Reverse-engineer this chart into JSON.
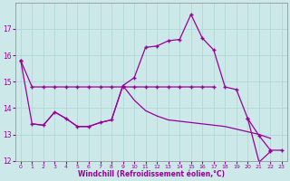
{
  "xlabel": "Windchill (Refroidissement éolien,°C)",
  "bg_color": "#cce8e8",
  "line_color": "#990099",
  "x": [
    0,
    1,
    2,
    3,
    4,
    5,
    6,
    7,
    8,
    9,
    10,
    11,
    12,
    13,
    14,
    15,
    16,
    17,
    18,
    19,
    20,
    21,
    22,
    23
  ],
  "line1_x": [
    0,
    1,
    2,
    3,
    4,
    5,
    6,
    7,
    8,
    9,
    10,
    11,
    12,
    13,
    14,
    15,
    16,
    17
  ],
  "line1_y": [
    15.8,
    14.8,
    14.8,
    14.8,
    14.8,
    14.8,
    14.8,
    14.8,
    14.8,
    14.8,
    14.8,
    14.8,
    14.8,
    14.8,
    14.8,
    14.8,
    14.8,
    14.8
  ],
  "line2_x": [
    0,
    1,
    2,
    3,
    4,
    5,
    6,
    7,
    8,
    9,
    10,
    11,
    12,
    13,
    14,
    15,
    16,
    17,
    18,
    19,
    20,
    21,
    22,
    23
  ],
  "line2_y": [
    15.8,
    13.4,
    13.35,
    13.85,
    13.6,
    13.3,
    13.3,
    13.45,
    13.55,
    14.85,
    15.15,
    16.3,
    16.35,
    16.55,
    16.6,
    17.55,
    16.65,
    16.2,
    14.8,
    14.7,
    13.6,
    12.95,
    12.4,
    12.4
  ],
  "line3_x": [
    1,
    2,
    3,
    4,
    5,
    6,
    7,
    8,
    9,
    10,
    11,
    12,
    13,
    14,
    15,
    16,
    17,
    18,
    19,
    20,
    21,
    22
  ],
  "line3_y": [
    13.4,
    13.35,
    13.85,
    13.6,
    13.3,
    13.3,
    13.45,
    13.55,
    14.85,
    14.3,
    13.9,
    13.7,
    13.55,
    13.5,
    13.45,
    13.4,
    13.35,
    13.3,
    13.2,
    13.1,
    13.0,
    12.85
  ],
  "line4_x": [
    20,
    21,
    22
  ],
  "line4_y": [
    13.6,
    11.95,
    12.35
  ],
  "ylim": [
    12,
    18
  ],
  "xlim": [
    -0.5,
    23.5
  ],
  "yticks": [
    12,
    13,
    14,
    15,
    16,
    17
  ],
  "xticks": [
    0,
    1,
    2,
    3,
    4,
    5,
    6,
    7,
    8,
    9,
    10,
    11,
    12,
    13,
    14,
    15,
    16,
    17,
    18,
    19,
    20,
    21,
    22,
    23
  ],
  "grid_color": "#b0d8d8",
  "spine_color": "#888888"
}
